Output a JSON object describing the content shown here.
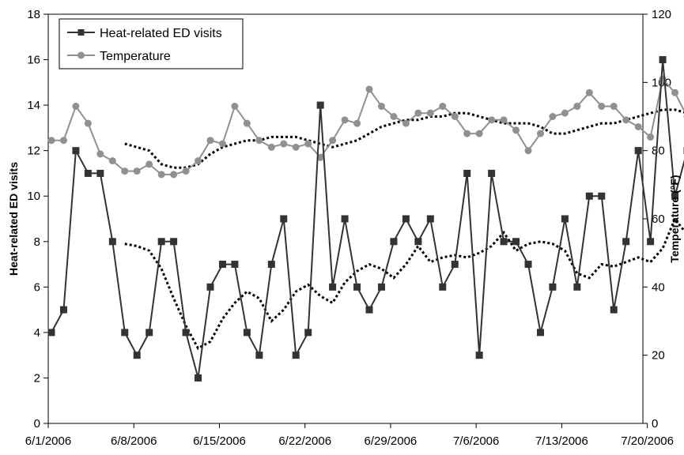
{
  "chart_data": {
    "type": "line",
    "x_tick_labels": [
      "6/1/2006",
      "6/8/2006",
      "6/15/2006",
      "6/22/2006",
      "6/29/2006",
      "7/6/2006",
      "7/13/2006",
      "7/20/2006"
    ],
    "x_start": "6/1/2006",
    "x_end": "7/25/2006",
    "y_left": {
      "label": "Heat-related ED visits",
      "min": 0,
      "max": 18,
      "step": 2
    },
    "y_right": {
      "label": "Temperature (°F)",
      "min": 0,
      "max": 120,
      "step": 20
    },
    "legend": {
      "position": "top-left"
    },
    "colors": {
      "visits": "#333333",
      "temperature": "#909090",
      "trend": "#000000"
    },
    "series": [
      {
        "name": "Heat-related ED visits",
        "axis": "left",
        "marker": "square",
        "values": [
          4,
          5,
          12,
          11,
          11,
          8,
          4,
          3,
          4,
          8,
          8,
          4,
          2,
          6,
          7,
          7,
          4,
          3,
          7,
          9,
          3,
          4,
          14,
          6,
          9,
          6,
          5,
          6,
          8,
          9,
          8,
          9,
          6,
          7,
          11,
          3,
          11,
          8,
          8,
          7,
          4,
          6,
          9,
          6,
          10,
          10,
          5,
          8,
          12,
          8,
          16,
          10,
          12
        ]
      },
      {
        "name": "Temperature",
        "axis": "right",
        "marker": "circle",
        "values": [
          83,
          83,
          93,
          88,
          79,
          77,
          74,
          74,
          76,
          73,
          73,
          74,
          77,
          83,
          82,
          93,
          88,
          83,
          81,
          82,
          81,
          82,
          78,
          83,
          89,
          88,
          98,
          93,
          90,
          88,
          91,
          91,
          93,
          90,
          85,
          85,
          89,
          89,
          86,
          80,
          85,
          90,
          91,
          93,
          97,
          93,
          93,
          89,
          87,
          84,
          101,
          97,
          90
        ]
      },
      {
        "name": "",
        "axis": "left",
        "style": "dotted",
        "start_index": 6,
        "values": [
          7.9,
          7.8,
          7.6,
          6.8,
          5.5,
          4.3,
          3.3,
          3.6,
          4.6,
          5.3,
          5.8,
          5.5,
          4.5,
          5.0,
          5.8,
          6.1,
          5.6,
          5.3,
          6.2,
          6.7,
          7.0,
          6.8,
          6.4,
          7.0,
          7.8,
          7.1,
          7.3,
          7.4,
          7.3,
          7.5,
          7.8,
          8.4,
          7.6,
          7.9,
          8.0,
          7.9,
          7.6,
          6.6,
          6.4,
          7.0,
          6.9,
          7.1,
          7.3,
          7.1,
          7.7,
          9.0,
          8.3,
          8.7,
          9.1,
          9.3
        ]
      },
      {
        "name": "",
        "axis": "right",
        "style": "dotted",
        "start_index": 6,
        "values": [
          82,
          81,
          80,
          76,
          75,
          75,
          76,
          79,
          81,
          82,
          83,
          83,
          84,
          84,
          84,
          83,
          82,
          81,
          82,
          83,
          85,
          87,
          88,
          89,
          89,
          90,
          90,
          91,
          91,
          90,
          89,
          88,
          88,
          88,
          87,
          85,
          85,
          86,
          87,
          88,
          88,
          89,
          90,
          91,
          92,
          92,
          91,
          91,
          92,
          91
        ]
      }
    ]
  }
}
